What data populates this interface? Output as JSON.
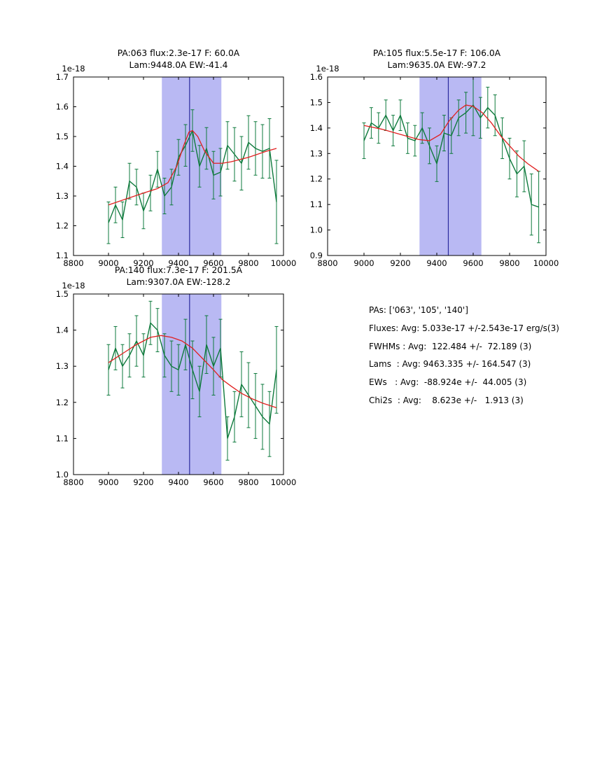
{
  "figure": {
    "background": "#ffffff"
  },
  "colors": {
    "data_line": "#0e7a3c",
    "fit_line": "#e02020",
    "band_fill": "#b9b9f3",
    "vline": "#2b2b9e",
    "axis": "#000000"
  },
  "stats_panel": {
    "lines": [
      "PAs: ['063', '105', '140']",
      "Fluxes: Avg: 5.033e-17 +/-2.543e-17 erg/s(3)",
      "FWHMs : Avg:  122.484 +/-  72.189 (3)",
      "Lams  : Avg: 9463.335 +/- 164.547 (3)",
      "EWs   : Avg:  -88.924e +/-  44.005 (3)",
      "Chi2s  : Avg:    8.623e +/-   1.913 (3)"
    ]
  },
  "chart_data": [
    {
      "type": "line",
      "title_line1": "PA:063 flux:2.3e-17 F: 60.0A",
      "title_line2": "Lam:9448.0A EW:-41.4",
      "xlabel": "",
      "ylabel": "",
      "offset_label": "1e-18",
      "xlim": [
        8800,
        10000
      ],
      "ylim": [
        1.1,
        1.7
      ],
      "xticks": [
        8800,
        9000,
        9200,
        9400,
        9600,
        9800,
        10000
      ],
      "yticks": [
        1.1,
        1.2,
        1.3,
        1.4,
        1.5,
        1.6,
        1.7
      ],
      "band": [
        9305,
        9645
      ],
      "vline": 9463.3,
      "x": [
        9000,
        9040,
        9080,
        9120,
        9160,
        9200,
        9240,
        9280,
        9320,
        9360,
        9400,
        9440,
        9480,
        9520,
        9560,
        9600,
        9640,
        9680,
        9720,
        9760,
        9800,
        9840,
        9880,
        9920,
        9960
      ],
      "y": [
        1.21,
        1.27,
        1.22,
        1.35,
        1.33,
        1.25,
        1.31,
        1.39,
        1.3,
        1.33,
        1.43,
        1.47,
        1.52,
        1.4,
        1.46,
        1.37,
        1.38,
        1.47,
        1.44,
        1.41,
        1.48,
        1.46,
        1.45,
        1.46,
        1.28
      ],
      "yerr": [
        0.07,
        0.06,
        0.06,
        0.06,
        0.06,
        0.06,
        0.06,
        0.06,
        0.06,
        0.06,
        0.06,
        0.07,
        0.07,
        0.07,
        0.07,
        0.08,
        0.08,
        0.08,
        0.09,
        0.09,
        0.09,
        0.09,
        0.09,
        0.1,
        0.14
      ],
      "fit_x": [
        9000,
        9100,
        9200,
        9280,
        9340,
        9390,
        9430,
        9460,
        9480,
        9510,
        9550,
        9600,
        9650,
        9700,
        9800,
        9900,
        9960
      ],
      "fit_y": [
        1.27,
        1.29,
        1.31,
        1.325,
        1.345,
        1.4,
        1.47,
        1.515,
        1.52,
        1.5,
        1.45,
        1.41,
        1.41,
        1.415,
        1.43,
        1.45,
        1.46
      ]
    },
    {
      "type": "line",
      "title_line1": "PA:105 flux:5.5e-17 F: 106.0A",
      "title_line2": "Lam:9635.0A EW:-97.2",
      "xlabel": "",
      "ylabel": "",
      "offset_label": "1e-18",
      "xlim": [
        8800,
        10000
      ],
      "ylim": [
        0.9,
        1.6
      ],
      "xticks": [
        8800,
        9000,
        9200,
        9400,
        9600,
        9800,
        10000
      ],
      "yticks": [
        0.9,
        1.0,
        1.1,
        1.2,
        1.3,
        1.4,
        1.5,
        1.6
      ],
      "band": [
        9305,
        9645
      ],
      "vline": 9463.3,
      "x": [
        9000,
        9040,
        9080,
        9120,
        9160,
        9200,
        9240,
        9280,
        9320,
        9360,
        9400,
        9440,
        9480,
        9520,
        9560,
        9600,
        9640,
        9680,
        9720,
        9760,
        9800,
        9840,
        9880,
        9920,
        9960
      ],
      "y": [
        1.35,
        1.42,
        1.4,
        1.45,
        1.39,
        1.45,
        1.36,
        1.35,
        1.4,
        1.33,
        1.26,
        1.38,
        1.37,
        1.44,
        1.46,
        1.49,
        1.44,
        1.48,
        1.45,
        1.36,
        1.28,
        1.22,
        1.25,
        1.1,
        1.09
      ],
      "yerr": [
        0.07,
        0.06,
        0.06,
        0.06,
        0.06,
        0.06,
        0.06,
        0.06,
        0.06,
        0.07,
        0.07,
        0.07,
        0.07,
        0.07,
        0.08,
        0.12,
        0.08,
        0.08,
        0.08,
        0.08,
        0.08,
        0.09,
        0.1,
        0.12,
        0.14
      ],
      "fit_x": [
        9000,
        9100,
        9200,
        9300,
        9360,
        9420,
        9470,
        9520,
        9560,
        9600,
        9650,
        9700,
        9750,
        9800,
        9850,
        9900,
        9960
      ],
      "fit_y": [
        1.41,
        1.395,
        1.375,
        1.355,
        1.35,
        1.375,
        1.43,
        1.47,
        1.49,
        1.485,
        1.46,
        1.42,
        1.37,
        1.33,
        1.29,
        1.26,
        1.23
      ]
    },
    {
      "type": "line",
      "title_line1": "PA:140 flux:7.3e-17 F: 201.5A",
      "title_line2": "Lam:9307.0A EW:-128.2",
      "xlabel": "",
      "ylabel": "",
      "offset_label": "1e-18",
      "xlim": [
        8800,
        10000
      ],
      "ylim": [
        1.0,
        1.5
      ],
      "xticks": [
        8800,
        9000,
        9200,
        9400,
        9600,
        9800,
        10000
      ],
      "yticks": [
        1.0,
        1.1,
        1.2,
        1.3,
        1.4,
        1.5
      ],
      "band": [
        9305,
        9645
      ],
      "vline": 9463.3,
      "x": [
        9000,
        9040,
        9080,
        9120,
        9160,
        9200,
        9240,
        9280,
        9320,
        9360,
        9400,
        9440,
        9480,
        9520,
        9560,
        9600,
        9640,
        9680,
        9720,
        9760,
        9800,
        9840,
        9880,
        9920,
        9960
      ],
      "y": [
        1.29,
        1.35,
        1.3,
        1.33,
        1.37,
        1.33,
        1.42,
        1.4,
        1.33,
        1.3,
        1.29,
        1.36,
        1.29,
        1.23,
        1.36,
        1.3,
        1.35,
        1.1,
        1.16,
        1.25,
        1.22,
        1.19,
        1.16,
        1.14,
        1.29
      ],
      "yerr": [
        0.07,
        0.06,
        0.06,
        0.06,
        0.07,
        0.06,
        0.06,
        0.06,
        0.06,
        0.07,
        0.07,
        0.07,
        0.08,
        0.07,
        0.08,
        0.08,
        0.08,
        0.06,
        0.07,
        0.09,
        0.09,
        0.09,
        0.09,
        0.09,
        0.12
      ],
      "fit_x": [
        9000,
        9080,
        9160,
        9240,
        9300,
        9360,
        9420,
        9480,
        9540,
        9600,
        9650,
        9700,
        9760,
        9820,
        9880,
        9960
      ],
      "fit_y": [
        1.31,
        1.335,
        1.36,
        1.38,
        1.385,
        1.38,
        1.37,
        1.35,
        1.32,
        1.29,
        1.263,
        1.245,
        1.225,
        1.21,
        1.198,
        1.185
      ]
    }
  ]
}
